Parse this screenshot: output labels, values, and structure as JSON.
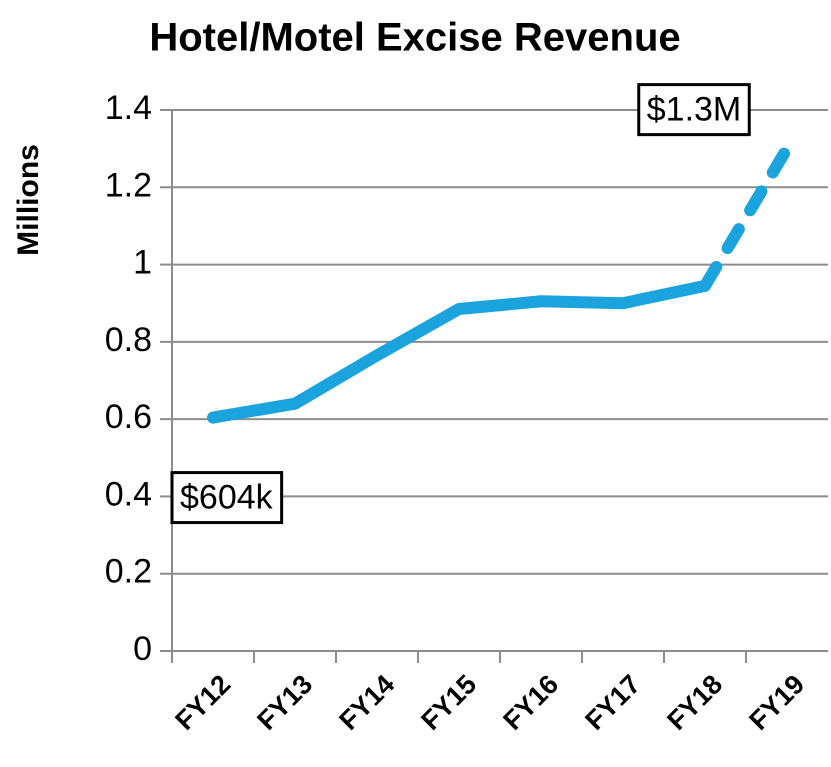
{
  "chart_data": {
    "type": "line",
    "title": "Hotel/Motel Excise Revenue",
    "y_label": "Millions",
    "categories": [
      "FY12",
      "FY13",
      "FY14",
      "FY15",
      "FY16",
      "FY17",
      "FY18",
      "FY19"
    ],
    "values": [
      0.604,
      0.64,
      0.765,
      0.885,
      0.905,
      0.9,
      0.945,
      1.3
    ],
    "value_labels": [
      "$604k",
      null,
      null,
      null,
      null,
      null,
      null,
      "$1.3M"
    ],
    "dashed_segments": [
      6
    ],
    "color": "#1aa3dc",
    "ylim": [
      0,
      1.4
    ],
    "yticks": [
      0,
      0.2,
      0.4,
      0.6,
      0.8,
      1,
      1.2,
      1.4
    ],
    "grid": true
  }
}
